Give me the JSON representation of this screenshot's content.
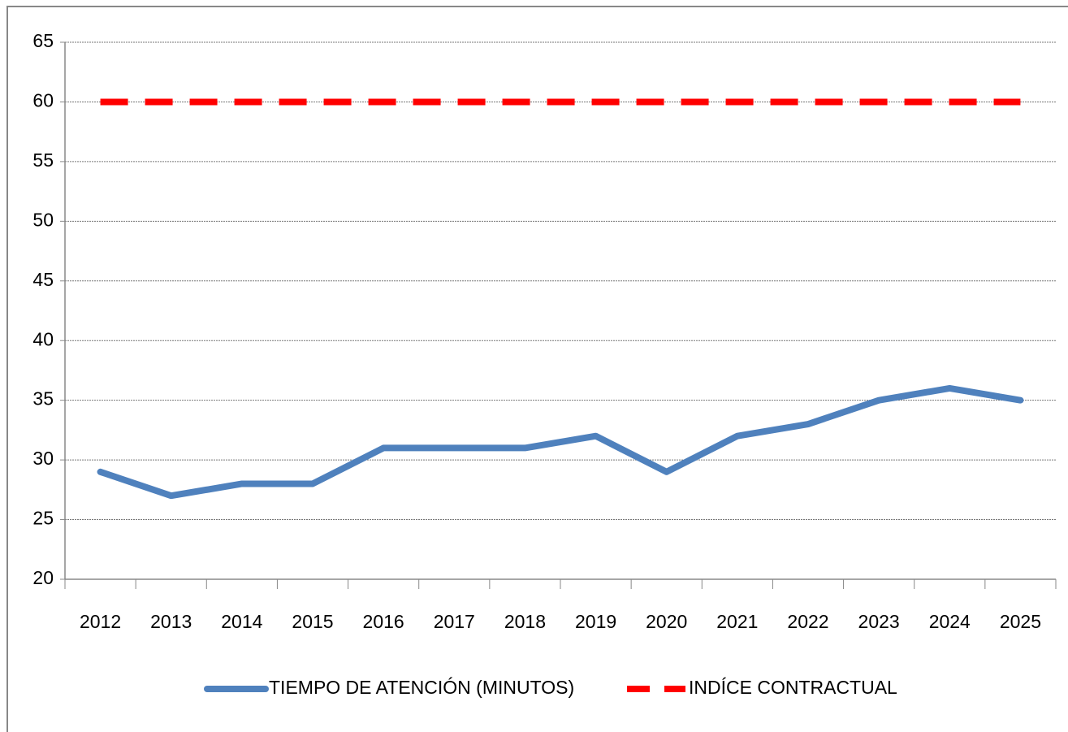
{
  "chart_data": {
    "type": "line",
    "categories": [
      "2012",
      "2013",
      "2014",
      "2015",
      "2016",
      "2017",
      "2018",
      "2019",
      "2020",
      "2021",
      "2022",
      "2023",
      "2024",
      "2025"
    ],
    "series": [
      {
        "name": "TIEMPO DE ATENCIÓN (MINUTOS)",
        "color": "#4f81bd",
        "dashed": false,
        "values": [
          29,
          27,
          28,
          28,
          31,
          31,
          31,
          32,
          29,
          32,
          33,
          35,
          36,
          35
        ]
      },
      {
        "name": "INDÍCE CONTRACTUAL",
        "color": "#ff0000",
        "dashed": true,
        "values": [
          60,
          60,
          60,
          60,
          60,
          60,
          60,
          60,
          60,
          60,
          60,
          60,
          60,
          60
        ]
      }
    ],
    "ylim": [
      20,
      65
    ],
    "yticks": [
      20,
      25,
      30,
      35,
      40,
      45,
      50,
      55,
      60,
      65
    ],
    "grid": true
  }
}
